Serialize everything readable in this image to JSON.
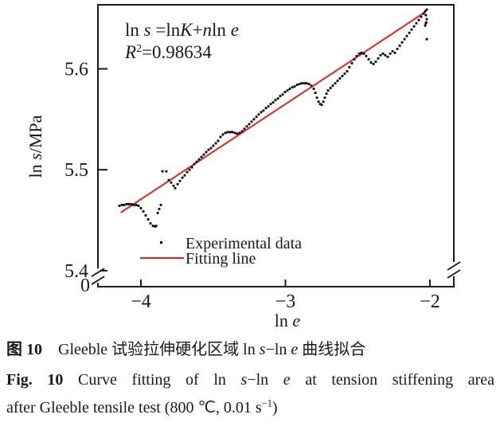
{
  "figure": {
    "background": "#ffffff",
    "text_color": "#1a1a1a"
  },
  "chart_data": {
    "type": "scatter",
    "title": "",
    "xlabel_runs": [
      {
        "t": "ln "
      },
      {
        "t": "e",
        "i": 1
      }
    ],
    "ylabel_runs": [
      {
        "t": "ln "
      },
      {
        "t": "s",
        "i": 1
      },
      {
        "t": "/MPa"
      }
    ],
    "xlim": [
      -4.2975,
      -1.8347
    ],
    "ylim": [
      5.3841,
      5.6635
    ],
    "grid": false,
    "x_ticks": [
      {
        "v": -4,
        "label": "−4"
      },
      {
        "v": -3,
        "label": "−3"
      },
      {
        "v": -2,
        "label": "−2"
      }
    ],
    "y_ticks": [
      {
        "v": 5.4,
        "label": "5.4"
      },
      {
        "v": 5.5,
        "label": "5.5"
      },
      {
        "v": 5.6,
        "label": "5.6"
      }
    ],
    "origin_label": "0",
    "axis_breaks": [
      {
        "side": "left",
        "at": 5.395
      },
      {
        "side": "right",
        "at": 5.4015
      }
    ],
    "annotations": [
      {
        "runs": [
          {
            "t": "ln "
          },
          {
            "t": "s",
            "i": 1
          },
          {
            "t": " =ln"
          },
          {
            "t": "K",
            "i": 1
          },
          {
            "t": "+"
          },
          {
            "t": "n",
            "i": 1
          },
          {
            "t": "ln "
          },
          {
            "t": "e",
            "i": 1
          }
        ]
      },
      {
        "runs": [
          {
            "t": "R",
            "i": 1
          },
          {
            "t": "2",
            "sup": 1
          },
          {
            "t": "=0.98634"
          }
        ]
      }
    ],
    "legend": {
      "position": "inside-bottom-center",
      "items": [
        {
          "marker": "point",
          "label": "Experimental data",
          "color": "#000000"
        },
        {
          "marker": "line",
          "label": "Fitting line",
          "color": "#e8211d"
        }
      ]
    },
    "fit_line": {
      "x1": -4.14,
      "y1": 5.4575,
      "x2": -2.03,
      "y2": 5.6565,
      "color": "#e8211d",
      "r_squared": "0.98634"
    },
    "point_color": "#000000",
    "points": [
      [
        -4.149,
        5.4643
      ],
      [
        -4.132,
        5.4651
      ],
      [
        -4.116,
        5.4651
      ],
      [
        -4.099,
        5.4659
      ],
      [
        -4.083,
        5.4659
      ],
      [
        -4.066,
        5.4659
      ],
      [
        -4.05,
        5.4651
      ],
      [
        -4.033,
        5.4651
      ],
      [
        -4.017,
        5.4643
      ],
      [
        -4.0,
        5.4619
      ],
      [
        -3.983,
        5.4587
      ],
      [
        -3.967,
        5.4548
      ],
      [
        -3.95,
        5.4508
      ],
      [
        -3.934,
        5.4468
      ],
      [
        -3.917,
        5.4444
      ],
      [
        -3.901,
        5.4437
      ],
      [
        -3.895,
        5.4444
      ],
      [
        -3.884,
        5.4571
      ],
      [
        -3.873,
        5.4611
      ],
      [
        -3.862,
        5.4651
      ],
      [
        -3.851,
        5.4984
      ],
      [
        -3.824,
        5.4984
      ],
      [
        -3.807,
        5.4897
      ],
      [
        -3.791,
        5.4873
      ],
      [
        -3.774,
        5.4841
      ],
      [
        -3.763,
        5.4817
      ],
      [
        -3.746,
        5.4857
      ],
      [
        -3.73,
        5.4889
      ],
      [
        -3.713,
        5.4921
      ],
      [
        -3.697,
        5.4944
      ],
      [
        -3.68,
        5.4976
      ],
      [
        -3.664,
        5.5
      ],
      [
        -3.647,
        5.5024
      ],
      [
        -3.631,
        5.5056
      ],
      [
        -3.614,
        5.5079
      ],
      [
        -3.598,
        5.5103
      ],
      [
        -3.581,
        5.5127
      ],
      [
        -3.565,
        5.5151
      ],
      [
        -3.548,
        5.5175
      ],
      [
        -3.532,
        5.5198
      ],
      [
        -3.515,
        5.5214
      ],
      [
        -3.499,
        5.5238
      ],
      [
        -3.482,
        5.5262
      ],
      [
        -3.466,
        5.5286
      ],
      [
        -3.449,
        5.5325
      ],
      [
        -3.433,
        5.5349
      ],
      [
        -3.416,
        5.5365
      ],
      [
        -3.4,
        5.5373
      ],
      [
        -3.383,
        5.5373
      ],
      [
        -3.367,
        5.5373
      ],
      [
        -3.35,
        5.5365
      ],
      [
        -3.334,
        5.5357
      ],
      [
        -3.317,
        5.5365
      ],
      [
        -3.3,
        5.5381
      ],
      [
        -3.284,
        5.5405
      ],
      [
        -3.267,
        5.5429
      ],
      [
        -3.251,
        5.5452
      ],
      [
        -3.234,
        5.5476
      ],
      [
        -3.218,
        5.55
      ],
      [
        -3.201,
        5.5524
      ],
      [
        -3.185,
        5.5548
      ],
      [
        -3.168,
        5.5571
      ],
      [
        -3.152,
        5.5587
      ],
      [
        -3.135,
        5.5611
      ],
      [
        -3.118,
        5.5627
      ],
      [
        -3.102,
        5.5651
      ],
      [
        -3.085,
        5.5667
      ],
      [
        -3.069,
        5.569
      ],
      [
        -3.052,
        5.5706
      ],
      [
        -3.036,
        5.573
      ],
      [
        -3.019,
        5.5746
      ],
      [
        -3.003,
        5.577
      ],
      [
        -2.986,
        5.5786
      ],
      [
        -2.97,
        5.5802
      ],
      [
        -2.953,
        5.5817
      ],
      [
        -2.937,
        5.5825
      ],
      [
        -2.92,
        5.5841
      ],
      [
        -2.903,
        5.5849
      ],
      [
        -2.887,
        5.5857
      ],
      [
        -2.87,
        5.5857
      ],
      [
        -2.854,
        5.5857
      ],
      [
        -2.837,
        5.5849
      ],
      [
        -2.821,
        5.5833
      ],
      [
        -2.804,
        5.5802
      ],
      [
        -2.793,
        5.5762
      ],
      [
        -2.782,
        5.5714
      ],
      [
        -2.771,
        5.5675
      ],
      [
        -2.76,
        5.5651
      ],
      [
        -2.749,
        5.5643
      ],
      [
        -2.738,
        5.5675
      ],
      [
        -2.727,
        5.5714
      ],
      [
        -2.716,
        5.5754
      ],
      [
        -2.705,
        5.5786
      ],
      [
        -2.688,
        5.581
      ],
      [
        -2.672,
        5.5833
      ],
      [
        -2.655,
        5.5857
      ],
      [
        -2.639,
        5.5881
      ],
      [
        -2.623,
        5.5905
      ],
      [
        -2.606,
        5.5929
      ],
      [
        -2.59,
        5.5952
      ],
      [
        -2.573,
        5.5976
      ],
      [
        -2.557,
        5.6016
      ],
      [
        -2.54,
        5.6056
      ],
      [
        -2.523,
        5.6095
      ],
      [
        -2.507,
        5.6127
      ],
      [
        -2.49,
        5.6151
      ],
      [
        -2.474,
        5.6159
      ],
      [
        -2.457,
        5.6151
      ],
      [
        -2.441,
        5.6127
      ],
      [
        -2.424,
        5.6095
      ],
      [
        -2.408,
        5.6063
      ],
      [
        -2.391,
        5.6048
      ],
      [
        -2.375,
        5.6071
      ],
      [
        -2.358,
        5.6103
      ],
      [
        -2.342,
        5.6135
      ],
      [
        -2.325,
        5.6151
      ],
      [
        -2.309,
        5.6135
      ],
      [
        -2.292,
        5.6119
      ],
      [
        -2.275,
        5.6151
      ],
      [
        -2.259,
        5.6175
      ],
      [
        -2.242,
        5.6159
      ],
      [
        -2.226,
        5.6198
      ],
      [
        -2.209,
        5.623
      ],
      [
        -2.193,
        5.6262
      ],
      [
        -2.176,
        5.6294
      ],
      [
        -2.16,
        5.6325
      ],
      [
        -2.143,
        5.6357
      ],
      [
        -2.127,
        5.6389
      ],
      [
        -2.11,
        5.6421
      ],
      [
        -2.094,
        5.6452
      ],
      [
        -2.077,
        5.6484
      ],
      [
        -2.061,
        5.6516
      ],
      [
        -2.044,
        5.6548
      ],
      [
        -2.033,
        5.6571
      ],
      [
        -2.028,
        5.6532
      ],
      [
        -2.022,
        5.6492
      ],
      [
        -2.028,
        5.6452
      ],
      [
        -2.033,
        5.6429
      ],
      [
        -2.022,
        5.6587
      ],
      [
        -2.025,
        5.646
      ],
      [
        -2.022,
        5.6294
      ]
    ]
  },
  "captions": {
    "zh_runs": [
      {
        "t": "图 10",
        "b": 1
      },
      {
        "t": "　Gleeble 试验拉伸硬化区域 ln "
      },
      {
        "t": "s",
        "i": 1
      },
      {
        "t": "−ln "
      },
      {
        "t": "e",
        "i": 1
      },
      {
        "t": " 曲线拟合"
      }
    ],
    "en_line1_runs": [
      {
        "t": "Fig. 10",
        "b": 1
      },
      {
        "t": "  Curve fitting of ln "
      },
      {
        "t": "s",
        "i": 1
      },
      {
        "t": "−ln "
      },
      {
        "t": "e",
        "i": 1
      },
      {
        "t": " at tension stiffening area"
      }
    ],
    "en_line2_runs": [
      {
        "t": "after Gleeble tensile test (800 ℃, 0.01 s"
      },
      {
        "t": "−1",
        "sup": 1
      },
      {
        "t": ")"
      }
    ]
  }
}
